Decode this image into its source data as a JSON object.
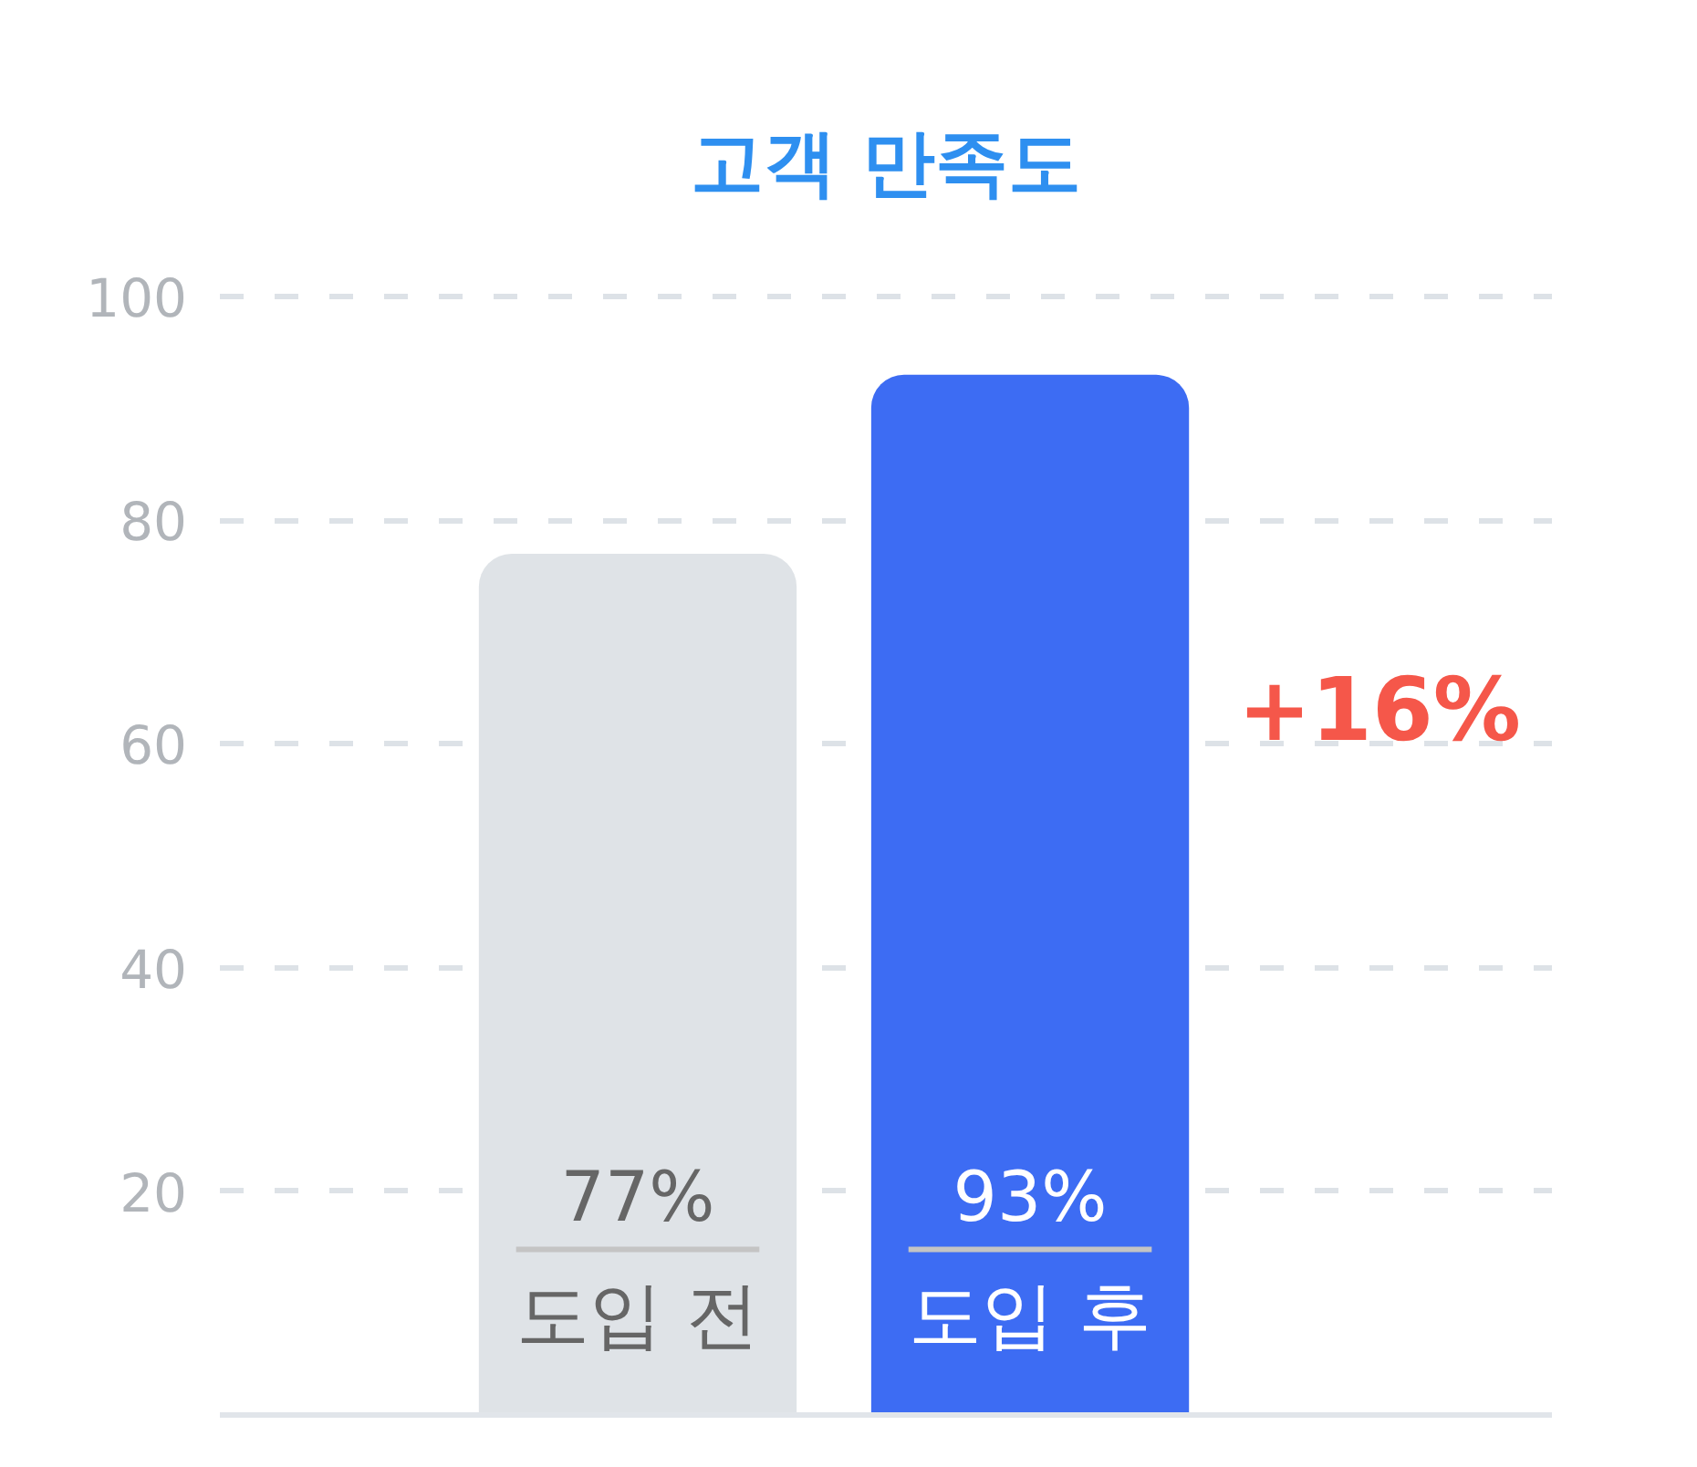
{
  "chart_data": {
    "type": "bar",
    "title": "고객 만족도",
    "categories": [
      "도입 전",
      "도입 후"
    ],
    "values": [
      77,
      93
    ],
    "colors": [
      "#dfe3e7",
      "#3d6cf3"
    ],
    "value_labels": [
      "77%",
      "93%"
    ],
    "ylim": [
      0,
      100
    ],
    "yticks": [
      20,
      40,
      60,
      80,
      100
    ],
    "grid": "y",
    "tick_labels": "y",
    "annotations": [
      "+16%"
    ]
  }
}
